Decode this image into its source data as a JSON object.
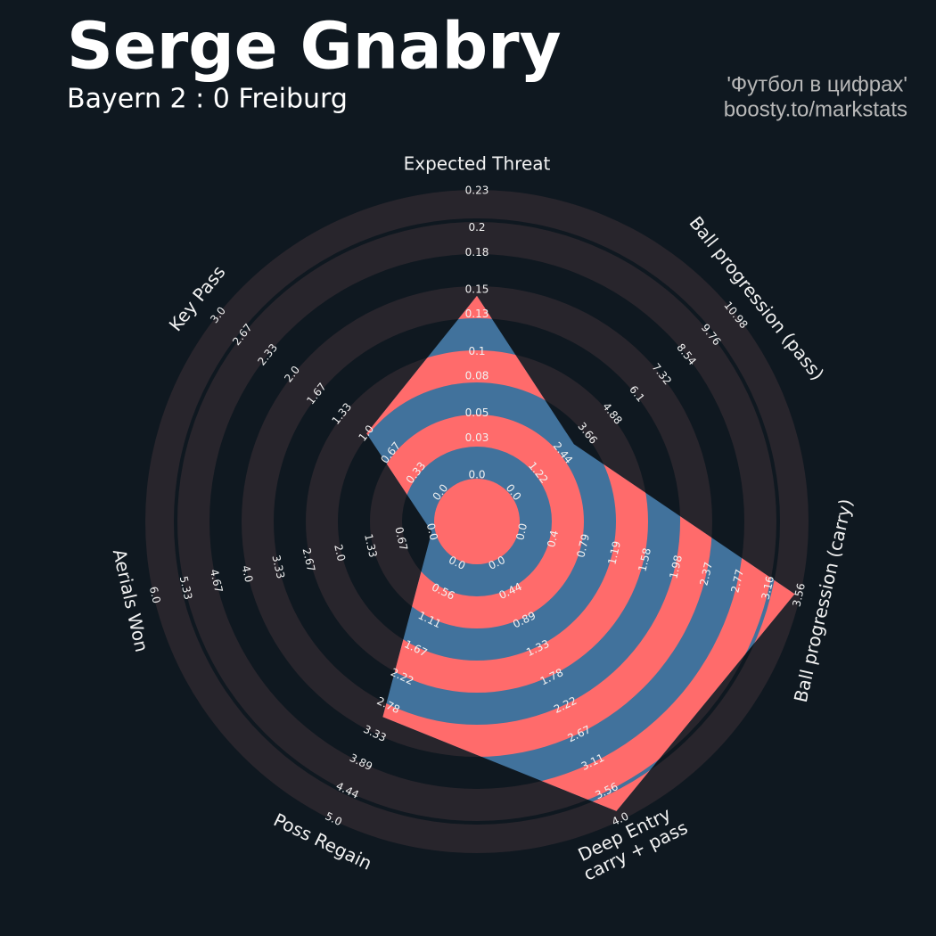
{
  "chart_data": {
    "type": "radar",
    "title": "Serge Gnabry",
    "subtitle": "Bayern 2 : 0 Freiburg",
    "credits": [
      "'Футбол в цифрах'",
      "boosty.to/markstats"
    ],
    "params": [
      "Expected Threat",
      "Ball progression (pass)",
      "Ball progression (carry)",
      "Deep Entry\ncarry + pass",
      "Poss Regain",
      "Aerials Won",
      "Key Pass"
    ],
    "values": [
      0.145,
      3.0,
      3.5,
      3.87,
      3.0,
      0,
      1.0
    ],
    "ticks": [
      [
        {
          "value": 0,
          "label": "0.0"
        },
        0.03,
        0.05,
        0.08,
        0.1,
        0.13,
        0.15,
        0.18,
        0.2,
        0.23
      ],
      [
        {
          "value": 0,
          "label": "0.0"
        },
        1.22,
        2.44,
        3.66,
        4.88,
        6.1,
        7.32,
        8.54,
        9.76,
        10.98
      ],
      [
        {
          "value": 0,
          "label": "0.0"
        },
        0.4,
        0.79,
        1.19,
        1.58,
        1.98,
        2.37,
        2.77,
        3.16,
        3.56
      ],
      [
        {
          "value": 0,
          "label": "0.0"
        },
        0.44,
        0.89,
        1.33,
        1.78,
        2.22,
        2.67,
        3.11,
        3.56,
        {
          "value": 4,
          "label": "4.0"
        }
      ],
      [
        {
          "value": 0,
          "label": "0.0"
        },
        0.56,
        1.11,
        1.67,
        2.22,
        2.78,
        3.33,
        3.89,
        4.44,
        {
          "value": 5,
          "label": "5.0"
        }
      ],
      [
        {
          "value": 0,
          "label": "0.0"
        },
        0.67,
        1.33,
        {
          "value": 2,
          "label": "2.0"
        },
        2.67,
        3.33,
        {
          "value": 4,
          "label": "4.0"
        },
        4.67,
        5.33,
        {
          "value": 6,
          "label": "6.0"
        }
      ],
      [
        {
          "value": 0,
          "label": "0.0"
        },
        0.33,
        0.67,
        {
          "value": 1,
          "label": "1.0"
        },
        1.33,
        1.67,
        {
          "value": 2,
          "label": "2.0"
        },
        2.33,
        2.67,
        {
          "value": 3,
          "label": "3.0"
        }
      ]
    ],
    "colors": {
      "polygon": "#41729c",
      "rings": "#ff6b6b",
      "background_rings": "#28252c"
    }
  }
}
